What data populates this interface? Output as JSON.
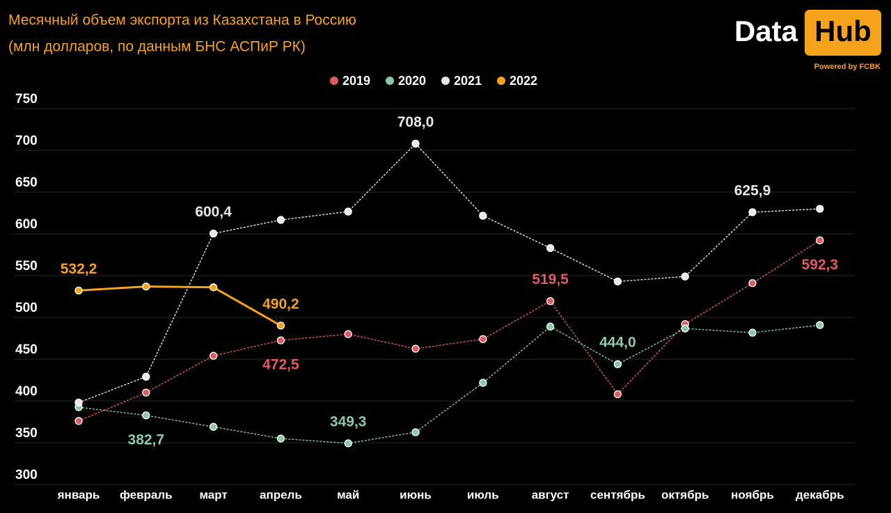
{
  "logo": {
    "left": "Data",
    "right": "Hub",
    "tagline": "Powered by FCBK"
  },
  "chart_data": {
    "type": "line",
    "title": "Месячный объем экспорта из Казахстана в Россию",
    "subtitle": "(млн долларов, по данным БНС АСПиР РК)",
    "categories": [
      "январь",
      "февраль",
      "март",
      "апрель",
      "май",
      "июнь",
      "июль",
      "август",
      "сентябрь",
      "октябрь",
      "ноябрь",
      "декабрь"
    ],
    "series": [
      {
        "name": "2019",
        "color": "#e05a63",
        "style": "dashed",
        "values": [
          376,
          410,
          454,
          472.5,
          480,
          462.5,
          474,
          519.5,
          408,
          492,
          541,
          592.3
        ],
        "value_labels": [
          null,
          null,
          null,
          "472,5",
          null,
          null,
          null,
          "519,5",
          null,
          null,
          null,
          "592,3"
        ]
      },
      {
        "name": "2020",
        "color": "#8dc9a8",
        "style": "dashed",
        "values": [
          392.5,
          382.7,
          369,
          355,
          349.3,
          362.5,
          421.7,
          489,
          444,
          486.7,
          481.7,
          490.8
        ],
        "value_labels": [
          null,
          "382,7",
          null,
          null,
          "349,3",
          null,
          null,
          null,
          "444,0",
          null,
          null,
          null
        ]
      },
      {
        "name": "2021",
        "color": "#e8e8e8",
        "style": "dashed",
        "values": [
          398,
          429,
          600.4,
          616.7,
          626.7,
          708,
          621.7,
          583,
          543,
          549,
          625.9,
          630
        ],
        "value_labels": [
          null,
          null,
          "600,4",
          null,
          null,
          "708,0",
          null,
          null,
          null,
          null,
          "625,9",
          null
        ]
      },
      {
        "name": "2022",
        "color": "#f5a31a",
        "style": "solid",
        "values": [
          532.2,
          537,
          536,
          490.2,
          null,
          null,
          null,
          null,
          null,
          null,
          null,
          null
        ],
        "value_labels": [
          "532,2",
          null,
          null,
          "490,2",
          null,
          null,
          null,
          null,
          null,
          null,
          null,
          null
        ]
      }
    ],
    "ylim": [
      300,
      750
    ],
    "yticks": [
      300,
      350,
      400,
      450,
      500,
      550,
      600,
      650,
      700,
      750
    ],
    "grid": true,
    "legend": "top"
  }
}
